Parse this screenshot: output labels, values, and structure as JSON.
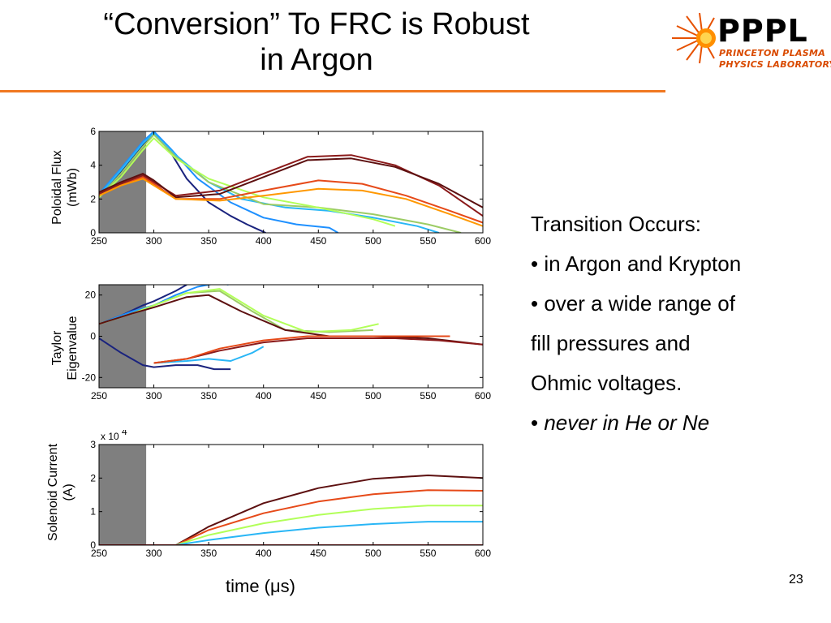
{
  "slide": {
    "title_line1": "“Conversion” To FRC is Robust",
    "title_line2": "in Argon",
    "logo_text": "PPPL",
    "logo_sub1": "PRINCETON PLASMA",
    "logo_sub2": "PHYSICS LABORATORY",
    "page_number": "23",
    "x_axis_label": "time (μs)",
    "bullets": {
      "heading": "Transition Occurs:",
      "b1": "• in Argon and Krypton",
      "b2": "• over a wide range of",
      "b3": "fill pressures and",
      "b4": "Ohmic voltages.",
      "b5_bullet": "•",
      "b5_text": "never in He or Ne"
    },
    "colors": {
      "accent": "#f07820",
      "shade": "#7f7f7f"
    }
  },
  "chart_data": [
    {
      "type": "line",
      "ylabel_line1": "Poloidal Flux",
      "ylabel_line2": "(mWb)",
      "xlim": [
        250,
        600
      ],
      "ylim": [
        0,
        6
      ],
      "xticks": [
        250,
        300,
        350,
        400,
        450,
        500,
        550,
        600
      ],
      "yticks": [
        0,
        2,
        4,
        6
      ],
      "shaded_x": [
        250,
        293
      ],
      "series": [
        {
          "color": "#1a237e",
          "x": [
            250,
            270,
            290,
            300,
            315,
            330,
            350,
            370,
            385,
            395,
            402
          ],
          "y": [
            2.2,
            3.6,
            5.2,
            5.9,
            4.8,
            3.2,
            1.8,
            1.0,
            0.5,
            0.2,
            0.0
          ]
        },
        {
          "color": "#1e90ff",
          "x": [
            250,
            270,
            290,
            300,
            315,
            340,
            370,
            400,
            430,
            460,
            468
          ],
          "y": [
            2.3,
            3.8,
            5.4,
            6.0,
            5.0,
            3.2,
            1.8,
            0.9,
            0.5,
            0.3,
            0.0
          ]
        },
        {
          "color": "#29b6f6",
          "x": [
            250,
            270,
            290,
            300,
            320,
            350,
            380,
            420,
            460,
            500,
            540,
            560
          ],
          "y": [
            2.2,
            3.7,
            5.3,
            5.9,
            4.6,
            3.0,
            2.0,
            1.5,
            1.3,
            0.9,
            0.4,
            0.0
          ]
        },
        {
          "color": "#9ccc65",
          "x": [
            250,
            270,
            290,
            300,
            320,
            350,
            400,
            450,
            500,
            550,
            580
          ],
          "y": [
            2.1,
            3.5,
            5.1,
            5.8,
            4.5,
            3.0,
            1.7,
            1.5,
            1.1,
            0.5,
            0.0
          ]
        },
        {
          "color": "#b2ff59",
          "x": [
            250,
            270,
            290,
            300,
            320,
            350,
            400,
            450,
            500,
            520
          ],
          "y": [
            2.1,
            3.3,
            4.9,
            5.6,
            4.4,
            3.2,
            2.1,
            1.5,
            0.8,
            0.4
          ]
        },
        {
          "color": "#8b1a1a",
          "x": [
            250,
            270,
            290,
            300,
            320,
            360,
            400,
            440,
            480,
            520,
            560,
            600
          ],
          "y": [
            2.3,
            2.9,
            3.4,
            3.0,
            2.2,
            2.5,
            3.5,
            4.5,
            4.6,
            4.0,
            2.8,
            1.0
          ]
        },
        {
          "color": "#5d1010",
          "x": [
            250,
            270,
            290,
            300,
            320,
            360,
            400,
            440,
            480,
            520,
            560,
            600
          ],
          "y": [
            2.4,
            3.0,
            3.5,
            3.1,
            2.1,
            2.3,
            3.3,
            4.3,
            4.4,
            3.9,
            2.9,
            1.5
          ]
        },
        {
          "color": "#e64a19",
          "x": [
            250,
            270,
            290,
            300,
            320,
            360,
            400,
            450,
            490,
            530,
            570,
            600
          ],
          "y": [
            2.2,
            2.8,
            3.3,
            2.9,
            2.0,
            2.0,
            2.5,
            3.1,
            2.9,
            2.2,
            1.3,
            0.6
          ]
        },
        {
          "color": "#ff9800",
          "x": [
            250,
            270,
            290,
            300,
            320,
            360,
            400,
            450,
            490,
            530,
            570,
            600
          ],
          "y": [
            2.2,
            2.8,
            3.2,
            2.8,
            2.0,
            1.9,
            2.2,
            2.6,
            2.5,
            2.0,
            1.1,
            0.4
          ]
        }
      ]
    },
    {
      "type": "line",
      "ylabel_line1": "Taylor",
      "ylabel_line2": "Eigenvalue",
      "xlim": [
        250,
        600
      ],
      "ylim": [
        -25,
        25
      ],
      "xticks": [
        250,
        300,
        350,
        400,
        450,
        500,
        550,
        600
      ],
      "yticks": [
        -20,
        0,
        20
      ],
      "shaded_x": [
        250,
        293
      ],
      "series": [
        {
          "color": "#1a237e",
          "x": [
            250,
            270,
            290,
            300,
            320,
            340,
            355,
            370
          ],
          "y": [
            -1,
            -8,
            -14,
            -15,
            -14,
            -14,
            -16,
            -16
          ]
        },
        {
          "color": "#1a237e",
          "x": [
            250,
            270,
            290,
            300,
            320,
            330
          ],
          "y": [
            6,
            10,
            15,
            17,
            22,
            25
          ]
        },
        {
          "color": "#1e90ff",
          "x": [
            250,
            280,
            300,
            320,
            340,
            360,
            368
          ],
          "y": [
            6,
            12,
            15,
            20,
            24,
            26,
            25
          ]
        },
        {
          "color": "#29b6f6",
          "x": [
            300,
            330,
            350,
            370,
            390,
            400
          ],
          "y": [
            -13,
            -12,
            -11,
            -12,
            -8,
            -5
          ]
        },
        {
          "color": "#9ccc65",
          "x": [
            250,
            280,
            300,
            330,
            360,
            390,
            420,
            460,
            500
          ],
          "y": [
            6,
            11,
            15,
            21,
            22,
            12,
            3,
            2,
            3
          ]
        },
        {
          "color": "#b2ff59",
          "x": [
            250,
            280,
            300,
            330,
            360,
            400,
            440,
            480,
            505
          ],
          "y": [
            6,
            11,
            15,
            21,
            23,
            10,
            2,
            3,
            6
          ]
        },
        {
          "color": "#5d1010",
          "x": [
            250,
            280,
            300,
            330,
            350,
            380,
            420,
            460,
            500,
            550,
            600
          ],
          "y": [
            6,
            11,
            14,
            19,
            20,
            12,
            3,
            0,
            0,
            -1,
            -4
          ]
        },
        {
          "color": "#8b1a1a",
          "x": [
            300,
            330,
            360,
            400,
            440,
            480,
            520,
            560,
            600
          ],
          "y": [
            -13,
            -11,
            -7,
            -3,
            -1,
            -1,
            -1,
            -2,
            -4
          ]
        },
        {
          "color": "#e64a19",
          "x": [
            300,
            330,
            360,
            400,
            440,
            480,
            520,
            560,
            570
          ],
          "y": [
            -13,
            -11,
            -6,
            -2,
            0,
            0,
            0,
            0,
            0
          ]
        }
      ]
    },
    {
      "type": "line",
      "ylabel_line1": "Solenoid Current",
      "ylabel_line2": "(A)",
      "scale_label": "x 10",
      "scale_exponent": "4",
      "xlim": [
        250,
        600
      ],
      "ylim": [
        0,
        3
      ],
      "xticks": [
        250,
        300,
        350,
        400,
        450,
        500,
        550,
        600
      ],
      "yticks": [
        0,
        1,
        2,
        3
      ],
      "shaded_x": [
        250,
        293
      ],
      "series": [
        {
          "color": "#5d1010",
          "x": [
            250,
            320,
            350,
            400,
            450,
            500,
            550,
            600
          ],
          "y": [
            0,
            0,
            0.55,
            1.25,
            1.7,
            1.98,
            2.08,
            2.0
          ]
        },
        {
          "color": "#e64a19",
          "x": [
            250,
            320,
            350,
            400,
            450,
            500,
            550,
            600
          ],
          "y": [
            0,
            0,
            0.45,
            0.95,
            1.3,
            1.52,
            1.64,
            1.62
          ]
        },
        {
          "color": "#b2ff59",
          "x": [
            250,
            320,
            350,
            400,
            450,
            500,
            550,
            600
          ],
          "y": [
            0,
            0,
            0.3,
            0.65,
            0.9,
            1.08,
            1.18,
            1.18
          ]
        },
        {
          "color": "#29b6f6",
          "x": [
            250,
            320,
            350,
            400,
            450,
            500,
            550,
            600
          ],
          "y": [
            0,
            0,
            0.15,
            0.36,
            0.52,
            0.63,
            0.7,
            0.7
          ]
        },
        {
          "color": "#8b1a1a",
          "x": [
            250,
            320,
            350,
            400,
            450,
            500,
            550,
            600
          ],
          "y": [
            0,
            0,
            0,
            0,
            0,
            0,
            0,
            0
          ]
        }
      ]
    }
  ]
}
